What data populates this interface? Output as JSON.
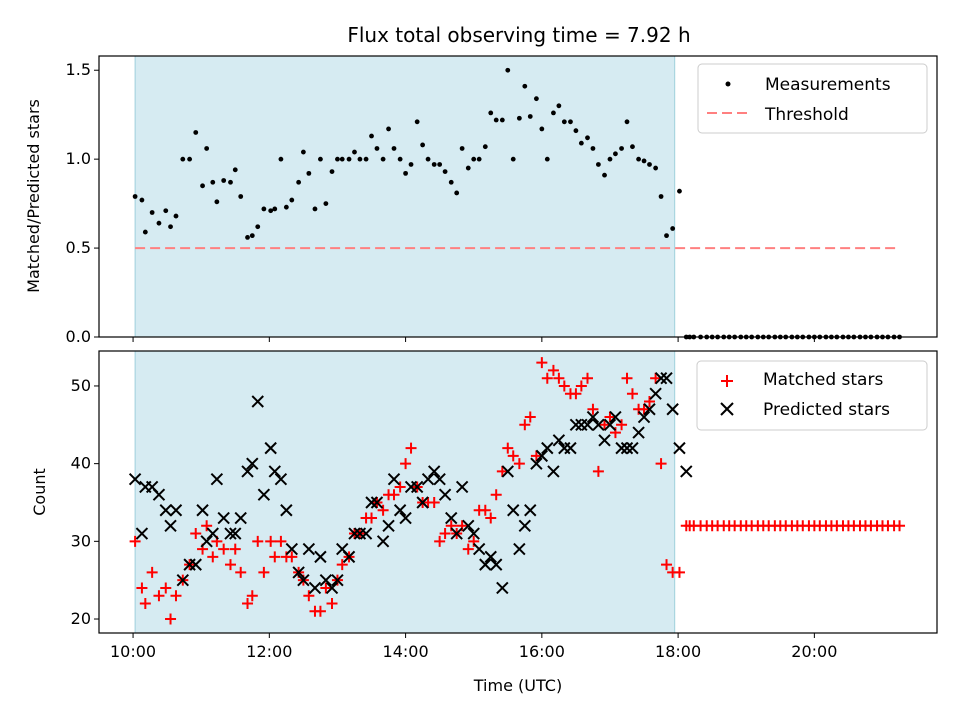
{
  "chart_data": {
    "title": "Flux total observing time = 7.92 h",
    "xlabel": "Time (UTC)",
    "x_unit": "hours (UTC)",
    "xlim": [
      9.5,
      21.8
    ],
    "x_ticks": [
      10,
      12,
      14,
      16,
      18,
      20
    ],
    "x_tick_labels": [
      "10:00",
      "12:00",
      "14:00",
      "16:00",
      "18:00",
      "20:00"
    ],
    "observing_window": [
      10.03,
      17.95
    ],
    "panels": [
      {
        "type": "scatter",
        "ylabel": "Matched/Predicted stars",
        "ylim": [
          0,
          1.58
        ],
        "y_ticks": [
          0.0,
          0.5,
          1.0,
          1.5
        ],
        "y_tick_labels": [
          "0.0",
          "0.5",
          "1.0",
          "1.5"
        ],
        "legend": [
          "Measurements",
          "Threshold"
        ],
        "series": [
          {
            "name": "Measurements",
            "marker": "dot",
            "color": "#000000",
            "x": [
              10.03,
              10.13,
              10.18,
              10.28,
              10.38,
              10.48,
              10.55,
              10.63,
              10.73,
              10.83,
              10.92,
              11.02,
              11.08,
              11.17,
              11.23,
              11.33,
              11.43,
              11.5,
              11.58,
              11.68,
              11.75,
              11.83,
              11.92,
              12.02,
              12.08,
              12.17,
              12.25,
              12.33,
              12.43,
              12.5,
              12.58,
              12.67,
              12.75,
              12.83,
              12.92,
              13.0,
              13.07,
              13.17,
              13.25,
              13.33,
              13.42,
              13.5,
              13.58,
              13.67,
              13.75,
              13.83,
              13.92,
              14.0,
              14.08,
              14.17,
              14.25,
              14.33,
              14.42,
              14.5,
              14.58,
              14.67,
              14.75,
              14.83,
              14.92,
              15.0,
              15.08,
              15.17,
              15.25,
              15.33,
              15.42,
              15.5,
              15.58,
              15.67,
              15.75,
              15.83,
              15.92,
              16.0,
              16.08,
              16.17,
              16.25,
              16.33,
              16.42,
              16.5,
              16.58,
              16.67,
              16.75,
              16.83,
              16.92,
              17.0,
              17.08,
              17.17,
              17.25,
              17.33,
              17.42,
              17.5,
              17.58,
              17.67,
              17.75,
              17.83,
              17.92,
              18.02,
              18.12,
              18.17,
              18.23,
              18.33,
              18.42,
              18.5,
              18.58,
              18.67,
              18.75,
              18.83,
              18.92,
              19.0,
              19.08,
              19.17,
              19.25,
              19.33,
              19.42,
              19.5,
              19.58,
              19.67,
              19.75,
              19.83,
              19.92,
              20.0,
              20.08,
              20.17,
              20.25,
              20.33,
              20.42,
              20.5,
              20.58,
              20.67,
              20.75,
              20.83,
              20.92,
              21.0,
              21.08,
              21.17,
              21.25
            ],
            "y": [
              0.79,
              0.77,
              0.59,
              0.7,
              0.64,
              0.71,
              0.62,
              0.68,
              1.0,
              1.0,
              1.15,
              0.85,
              1.06,
              0.87,
              0.76,
              0.88,
              0.87,
              0.94,
              0.79,
              0.56,
              0.57,
              0.62,
              0.72,
              0.71,
              0.72,
              1.0,
              0.73,
              0.77,
              0.87,
              1.04,
              0.92,
              0.72,
              1.0,
              0.75,
              0.93,
              1.0,
              1.0,
              1.0,
              1.04,
              1.0,
              1.0,
              1.13,
              1.06,
              1.0,
              1.17,
              1.06,
              1.0,
              0.92,
              0.97,
              1.21,
              1.08,
              1.0,
              0.97,
              0.97,
              0.93,
              0.87,
              0.81,
              1.06,
              0.95,
              1.0,
              1.0,
              1.07,
              1.26,
              1.22,
              1.22,
              1.5,
              1.0,
              1.23,
              1.41,
              1.24,
              1.34,
              1.17,
              1.0,
              1.26,
              1.3,
              1.21,
              1.21,
              1.16,
              1.09,
              1.12,
              1.06,
              0.97,
              0.91,
              1.0,
              1.03,
              1.06,
              1.21,
              1.07,
              1.0,
              0.99,
              0.97,
              0.95,
              0.79,
              0.57,
              0.61,
              0.82,
              0.0,
              0.0,
              0.0,
              0.0,
              0.0,
              0.0,
              0.0,
              0.0,
              0.0,
              0.0,
              0.0,
              0.0,
              0.0,
              0.0,
              0.0,
              0.0,
              0.0,
              0.0,
              0.0,
              0.0,
              0.0,
              0.0,
              0.0,
              0.0,
              0.0,
              0.0,
              0.0,
              0.0,
              0.0,
              0.0,
              0.0,
              0.0,
              0.0,
              0.0,
              0.0,
              0.0,
              0.0,
              0.0,
              0.0
            ]
          },
          {
            "name": "Threshold",
            "marker": "dashed-line",
            "color": "#ff8080",
            "x": [
              10.03,
              21.25
            ],
            "y": [
              0.5,
              0.5
            ]
          }
        ]
      },
      {
        "type": "scatter",
        "ylabel": "Count",
        "ylim": [
          18.2,
          54.5
        ],
        "y_ticks": [
          20,
          30,
          40,
          50
        ],
        "y_tick_labels": [
          "20",
          "30",
          "40",
          "50"
        ],
        "legend": [
          "Matched stars",
          "Predicted stars"
        ],
        "series": [
          {
            "name": "Matched stars",
            "marker": "plus",
            "color": "#ff0000",
            "x": [
              10.03,
              10.13,
              10.18,
              10.28,
              10.38,
              10.48,
              10.55,
              10.63,
              10.73,
              10.83,
              10.92,
              11.02,
              11.08,
              11.17,
              11.23,
              11.33,
              11.43,
              11.5,
              11.58,
              11.68,
              11.75,
              11.83,
              11.92,
              12.02,
              12.08,
              12.17,
              12.25,
              12.33,
              12.43,
              12.5,
              12.58,
              12.67,
              12.75,
              12.83,
              12.92,
              13.0,
              13.07,
              13.17,
              13.25,
              13.33,
              13.42,
              13.5,
              13.58,
              13.67,
              13.75,
              13.83,
              13.92,
              14.0,
              14.08,
              14.17,
              14.25,
              14.33,
              14.42,
              14.5,
              14.58,
              14.67,
              14.75,
              14.83,
              14.92,
              15.0,
              15.08,
              15.17,
              15.25,
              15.33,
              15.42,
              15.5,
              15.58,
              15.67,
              15.75,
              15.83,
              15.92,
              16.0,
              16.08,
              16.17,
              16.25,
              16.33,
              16.42,
              16.5,
              16.58,
              16.67,
              16.75,
              16.83,
              16.92,
              17.0,
              17.08,
              17.17,
              17.25,
              17.33,
              17.42,
              17.5,
              17.58,
              17.67,
              17.75,
              17.83,
              17.92,
              18.02,
              18.12,
              18.17,
              18.23,
              18.33,
              18.42,
              18.5,
              18.58,
              18.67,
              18.75,
              18.83,
              18.92,
              19.0,
              19.08,
              19.17,
              19.25,
              19.33,
              19.42,
              19.5,
              19.58,
              19.67,
              19.75,
              19.83,
              19.92,
              20.0,
              20.08,
              20.17,
              20.25,
              20.33,
              20.42,
              20.5,
              20.58,
              20.67,
              20.75,
              20.83,
              20.92,
              21.0,
              21.08,
              21.17,
              21.25
            ],
            "y": [
              30,
              24,
              22,
              26,
              23,
              24,
              20,
              23,
              25,
              27,
              31,
              29,
              32,
              28,
              30,
              29,
              27,
              29,
              26,
              22,
              23,
              30,
              26,
              30,
              28,
              30,
              28,
              28,
              26,
              25,
              23,
              21,
              21,
              24,
              22,
              25,
              27,
              28,
              31,
              31,
              33,
              33,
              35,
              34,
              36,
              36,
              37,
              40,
              42,
              37,
              35,
              35,
              35,
              30,
              31,
              32,
              31,
              32,
              29,
              30,
              34,
              34,
              33,
              36,
              39,
              42,
              41,
              40,
              45,
              46,
              41,
              53,
              51,
              52,
              51,
              50,
              49,
              49,
              50,
              51,
              47,
              39,
              45,
              46,
              44,
              45,
              51,
              49,
              47,
              47,
              48,
              51,
              40,
              27,
              26,
              26,
              32,
              32,
              32,
              32,
              32,
              32,
              32,
              32,
              32,
              32,
              32,
              32,
              32,
              32,
              32,
              32,
              32,
              32,
              32,
              32,
              32,
              32,
              32,
              32,
              32,
              32,
              32,
              32,
              32,
              32,
              32,
              32,
              32,
              32,
              32,
              32,
              32,
              32,
              32
            ]
          },
          {
            "name": "Predicted stars",
            "marker": "x",
            "color": "#000000",
            "x": [
              10.03,
              10.13,
              10.18,
              10.28,
              10.38,
              10.48,
              10.55,
              10.63,
              10.73,
              10.83,
              10.92,
              11.02,
              11.08,
              11.17,
              11.23,
              11.33,
              11.43,
              11.5,
              11.58,
              11.68,
              11.75,
              11.83,
              11.92,
              12.02,
              12.08,
              12.17,
              12.25,
              12.33,
              12.43,
              12.5,
              12.58,
              12.67,
              12.75,
              12.83,
              12.92,
              13.0,
              13.07,
              13.17,
              13.25,
              13.33,
              13.42,
              13.5,
              13.58,
              13.67,
              13.75,
              13.83,
              13.92,
              14.0,
              14.08,
              14.17,
              14.25,
              14.33,
              14.42,
              14.5,
              14.58,
              14.67,
              14.75,
              14.83,
              14.92,
              15.0,
              15.08,
              15.17,
              15.25,
              15.33,
              15.42,
              15.5,
              15.58,
              15.67,
              15.75,
              15.83,
              15.92,
              16.0,
              16.08,
              16.17,
              16.25,
              16.33,
              16.42,
              16.5,
              16.58,
              16.67,
              16.75,
              16.83,
              16.92,
              17.0,
              17.08,
              17.17,
              17.25,
              17.33,
              17.42,
              17.5,
              17.58,
              17.67,
              17.75,
              17.83,
              17.92,
              18.02,
              18.12
            ],
            "y": [
              38,
              31,
              37,
              37,
              36,
              34,
              32,
              34,
              25,
              27,
              27,
              34,
              30,
              31,
              38,
              33,
              31,
              31,
              33,
              39,
              40,
              48,
              36,
              42,
              39,
              38,
              34,
              29,
              26,
              25,
              29,
              24,
              28,
              25,
              24,
              25,
              29,
              28,
              31,
              31,
              31,
              35,
              35,
              30,
              32,
              38,
              34,
              33,
              37,
              37,
              35,
              38,
              39,
              38,
              36,
              33,
              31,
              37,
              32,
              31,
              29,
              27,
              28,
              27,
              24,
              39,
              34,
              29,
              32,
              34,
              40,
              41,
              42,
              39,
              43,
              42,
              42,
              45,
              45,
              45,
              46,
              45,
              43,
              45,
              46,
              42,
              42,
              42,
              44,
              46,
              47,
              49,
              51,
              51,
              47,
              42,
              39
            ]
          }
        ]
      }
    ]
  }
}
